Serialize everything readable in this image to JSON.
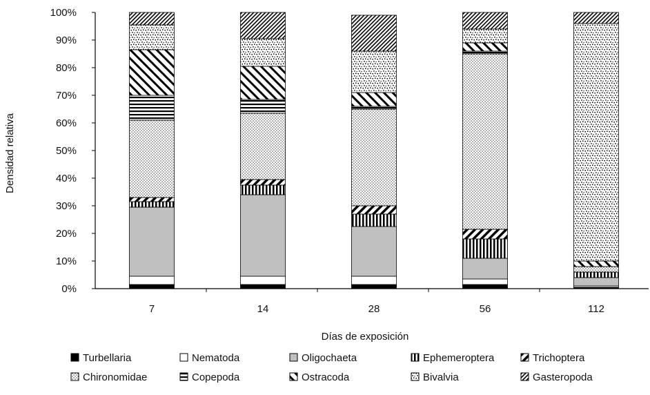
{
  "chart_data": {
    "type": "bar",
    "stacked": true,
    "title": "",
    "xlabel": "Días de exposición",
    "ylabel": "Densidad relativa",
    "ylim": [
      0,
      100
    ],
    "yticks": [
      "0%",
      "10%",
      "20%",
      "30%",
      "40%",
      "50%",
      "60%",
      "70%",
      "80%",
      "90%",
      "100%"
    ],
    "categories": [
      "7",
      "14",
      "28",
      "56",
      "112"
    ],
    "grid": false,
    "legend_position": "bottom",
    "series": [
      {
        "name": "Turbellaria",
        "pattern": "solid-black",
        "values": [
          1.5,
          1.5,
          1.5,
          1.5,
          0.5
        ]
      },
      {
        "name": "Nematoda",
        "pattern": "white",
        "values": [
          3,
          3,
          3,
          2,
          0.5
        ]
      },
      {
        "name": "Oligochaeta",
        "pattern": "gray",
        "values": [
          25,
          29.5,
          18,
          7.5,
          3
        ]
      },
      {
        "name": "Ephemeroptera",
        "pattern": "vertical-lines",
        "values": [
          2,
          3.5,
          4.5,
          7,
          2
        ]
      },
      {
        "name": "Trichoptera",
        "pattern": "back-diagonal",
        "values": [
          1.5,
          2,
          3,
          3.5,
          0
        ]
      },
      {
        "name": "Chironomidae",
        "pattern": "fine-dots",
        "values": [
          28,
          24,
          35,
          63.5,
          2
        ]
      },
      {
        "name": "Copepoda",
        "pattern": "horizontal-lines",
        "values": [
          9,
          5,
          1,
          1,
          0
        ]
      },
      {
        "name": "Ostracoda",
        "pattern": "forward-diagonal",
        "values": [
          16.5,
          12,
          5,
          3,
          2
        ]
      },
      {
        "name": "Bivalvia",
        "pattern": "coarse-dots",
        "values": [
          9,
          10,
          15,
          5,
          86
        ]
      },
      {
        "name": "Gasteropoda",
        "pattern": "dense-back-diagonal",
        "values": [
          4.5,
          9.5,
          13,
          6,
          4
        ]
      }
    ]
  }
}
